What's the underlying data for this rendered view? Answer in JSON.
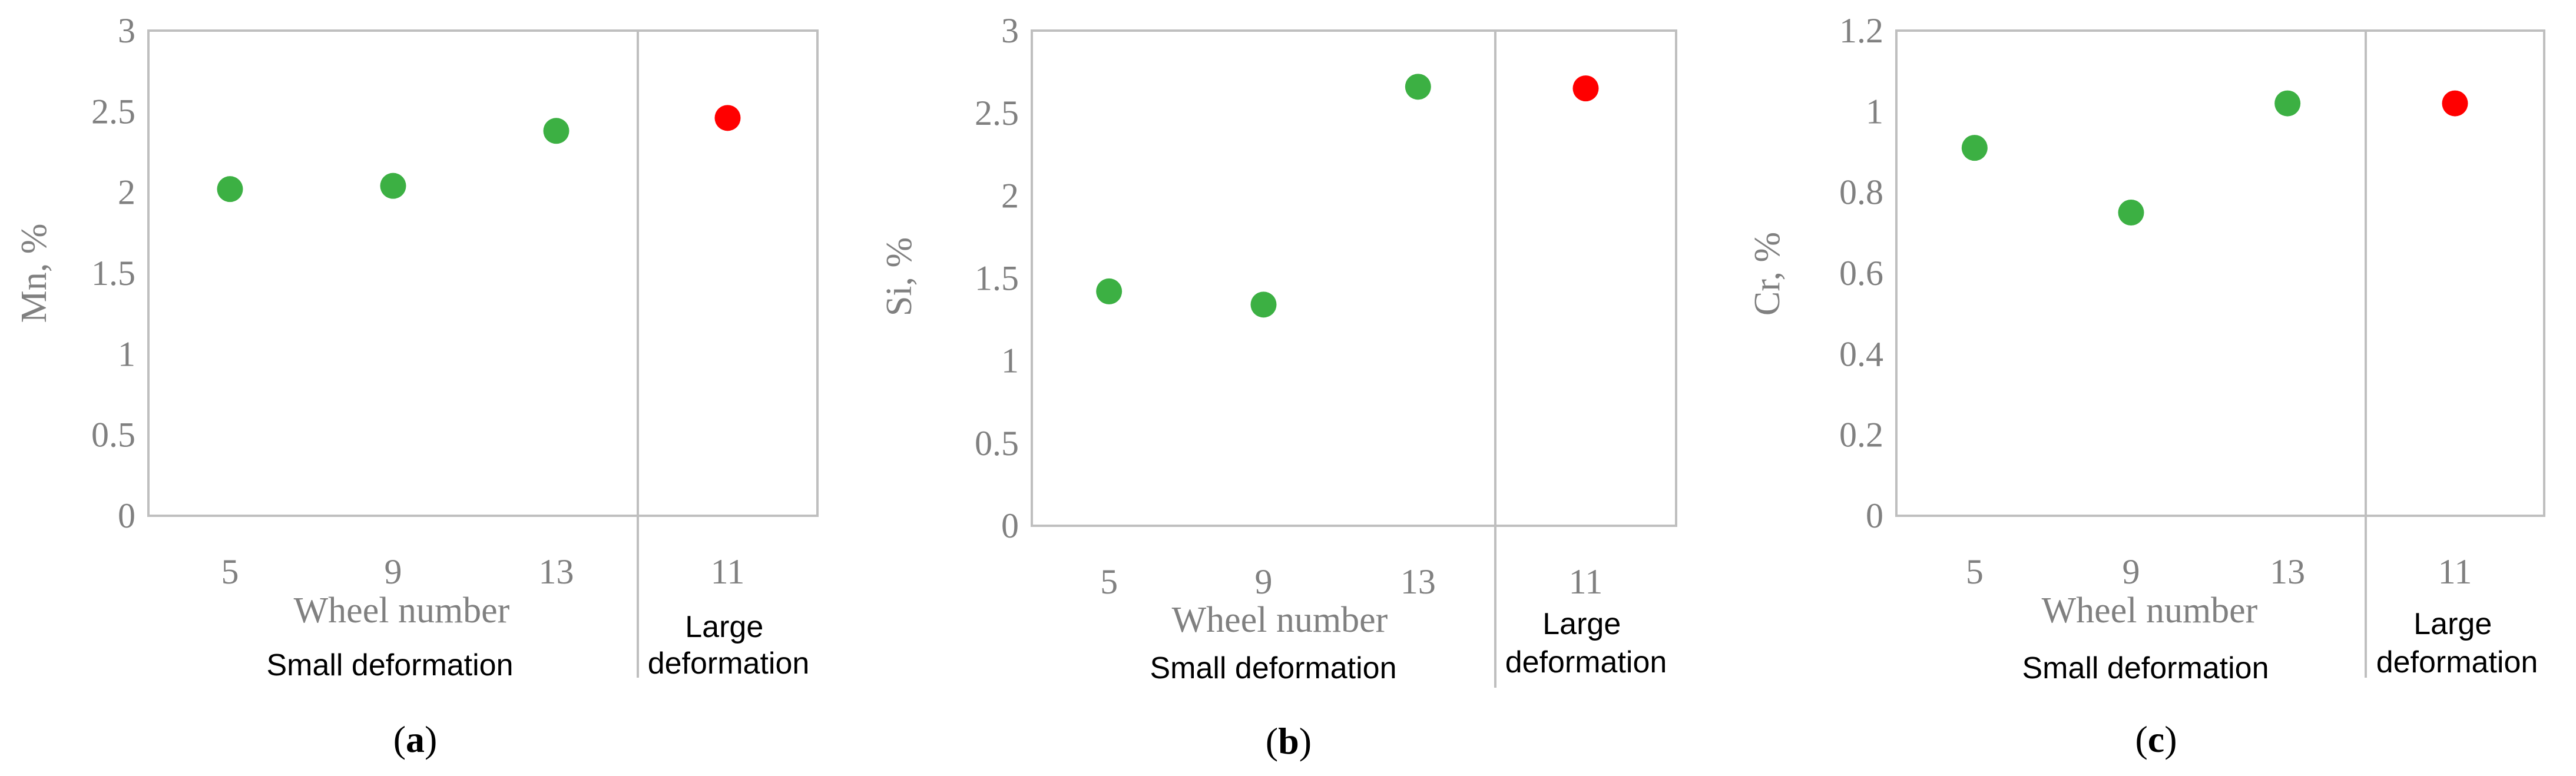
{
  "chart_data": [
    {
      "type": "scatter",
      "panel_label": "a",
      "ylabel": "Mn, %",
      "xlabel": "Wheel number",
      "ylim": [
        0,
        3
      ],
      "yticks": [
        "0",
        "0.5",
        "1",
        "1.5",
        "2",
        "2.5",
        "3"
      ],
      "ytick_values": [
        0,
        0.5,
        1,
        1.5,
        2,
        2.5,
        3
      ],
      "categories": [
        "5",
        "9",
        "13",
        "11"
      ],
      "values": [
        2.02,
        2.04,
        2.38,
        2.46
      ],
      "groups": [
        {
          "name": "Small deformation",
          "categories": [
            "5",
            "9",
            "13"
          ],
          "color": "#3cb043"
        },
        {
          "name": "Large deformation",
          "label_lines": [
            "Large",
            "deformation"
          ],
          "categories": [
            "11"
          ],
          "color": "#ff0000"
        }
      ]
    },
    {
      "type": "scatter",
      "panel_label": "b",
      "ylabel": "Si, %",
      "xlabel": "Wheel number",
      "ylim": [
        0,
        3
      ],
      "yticks": [
        "0",
        "0.5",
        "1",
        "1.5",
        "2",
        "2.5",
        "3"
      ],
      "ytick_values": [
        0,
        0.5,
        1,
        1.5,
        2,
        2.5,
        3
      ],
      "categories": [
        "5",
        "9",
        "13",
        "11"
      ],
      "values": [
        1.42,
        1.34,
        2.66,
        2.65
      ],
      "groups": [
        {
          "name": "Small deformation",
          "categories": [
            "5",
            "9",
            "13"
          ],
          "color": "#3cb043"
        },
        {
          "name": "Large deformation",
          "label_lines": [
            "Large",
            "deformation"
          ],
          "categories": [
            "11"
          ],
          "color": "#ff0000"
        }
      ]
    },
    {
      "type": "scatter",
      "panel_label": "c",
      "ylabel": "Cr, %",
      "xlabel": "Wheel number",
      "ylim": [
        0,
        1.2
      ],
      "yticks": [
        "0",
        "0.2",
        "0.4",
        "0.6",
        "0.8",
        "1",
        "1.2"
      ],
      "ytick_values": [
        0,
        0.2,
        0.4,
        0.6,
        0.8,
        1,
        1.2
      ],
      "categories": [
        "5",
        "9",
        "13",
        "11"
      ],
      "values": [
        0.91,
        0.75,
        1.02,
        1.02
      ],
      "groups": [
        {
          "name": "Small deformation",
          "categories": [
            "5",
            "9",
            "13"
          ],
          "color": "#3cb043"
        },
        {
          "name": "Large deformation",
          "label_lines": [
            "Large",
            "deformation"
          ],
          "categories": [
            "11"
          ],
          "color": "#ff0000"
        }
      ]
    }
  ],
  "colors": {
    "axis": "#bfbfbf",
    "tick_text": "#808080",
    "small": "#3cb043",
    "large": "#ff0000"
  }
}
